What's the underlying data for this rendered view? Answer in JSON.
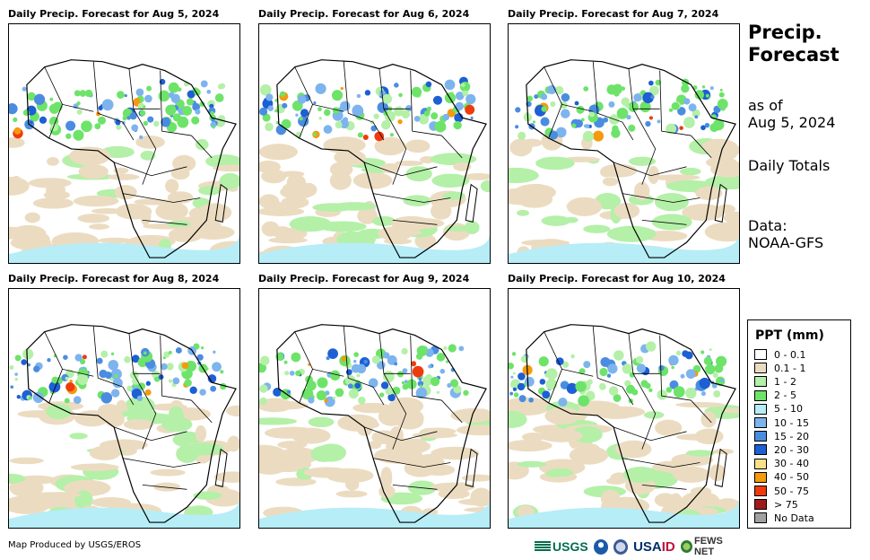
{
  "panels": [
    {
      "title": "Daily Precip. Forecast for Aug 5, 2024"
    },
    {
      "title": "Daily Precip. Forecast for Aug 6, 2024"
    },
    {
      "title": "Daily Precip. Forecast for Aug 7, 2024"
    },
    {
      "title": "Daily Precip. Forecast for Aug 8, 2024"
    },
    {
      "title": "Daily Precip. Forecast for Aug 9, 2024"
    },
    {
      "title": "Daily Precip. Forecast for Aug 10, 2024"
    }
  ],
  "side": {
    "title_line1": "Precip.",
    "title_line2": "Forecast",
    "asof_line1": "as of",
    "asof_line2": "Aug 5, 2024",
    "totals": "Daily Totals",
    "data_line1": "Data:",
    "data_line2": "NOAA-GFS"
  },
  "legend": {
    "title": "PPT (mm)",
    "items": [
      {
        "label": "0 - 0.1",
        "color": "#ffffff"
      },
      {
        "label": "0.1 - 1",
        "color": "#ebdcc1"
      },
      {
        "label": "1 - 2",
        "color": "#b4f0a8"
      },
      {
        "label": "2 - 5",
        "color": "#6ee36a"
      },
      {
        "label": "5 - 10",
        "color": "#b6edf7"
      },
      {
        "label": "10 - 15",
        "color": "#7db4ee"
      },
      {
        "label": "15 - 20",
        "color": "#4a8de0"
      },
      {
        "label": "20 - 30",
        "color": "#1d5fd4"
      },
      {
        "label": "30 - 40",
        "color": "#fbe08a"
      },
      {
        "label": "40 - 50",
        "color": "#f59a0d"
      },
      {
        "label": "50 - 75",
        "color": "#ef3b0c"
      },
      {
        "label": "> 75",
        "color": "#a01a1a"
      },
      {
        "label": "No Data",
        "color": "#a0a0a0"
      }
    ]
  },
  "credit": "Map Produced by USGS/EROS",
  "logos": {
    "usgs": "USGS",
    "usaid_a": "USA",
    "usaid_b": "ID",
    "fews": "FEWS NET"
  }
}
